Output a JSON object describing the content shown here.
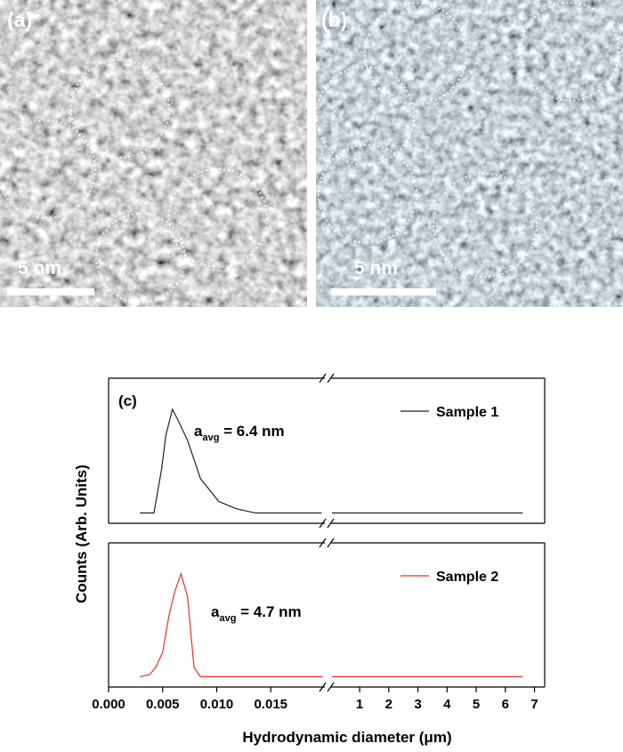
{
  "images": [
    {
      "label": "(a)",
      "scale_bar": "5 nm"
    },
    {
      "label": "(b)",
      "scale_bar": "5 nm"
    }
  ],
  "chart_data": {
    "type": "line",
    "label": "(c)",
    "xlabel": "Hydrodynamic diameter (μm)",
    "ylabel": "Counts (Arb. Units)",
    "xlim": [
      0,
      0.02
    ],
    "xticks": [
      {
        "value": 0,
        "label": "0.000"
      },
      0.005,
      {
        "value": 0.01,
        "label": "0.010"
      },
      0.015
    ],
    "x2lim": [
      0.02,
      7.35
    ],
    "x2ticks": [
      1,
      2,
      3,
      4,
      5,
      6,
      7
    ],
    "ylim": [
      -0.1,
      1.3
    ],
    "legend": "upper right",
    "series": [
      {
        "name": "Sample 1",
        "color": "#222222",
        "x": [
          0.0029,
          0.0042,
          0.0049,
          0.0053,
          0.0059,
          0.0064,
          0.0073,
          0.0085,
          0.0102,
          0.0118,
          0.0136,
          0.0197,
          0.05,
          6.6
        ],
        "values": [
          0,
          0,
          0.42,
          0.75,
          1.0,
          0.9,
          0.7,
          0.33,
          0.11,
          0.04,
          0,
          0,
          0,
          0
        ],
        "annotation": {
          "symbol": "a",
          "subscript": "avg",
          "text": " = 6.4 nm"
        }
      },
      {
        "name": "Sample 2",
        "color": "#e8302a",
        "x": [
          0.0029,
          0.0038,
          0.0044,
          0.005,
          0.0056,
          0.0061,
          0.0067,
          0.0073,
          0.0079,
          0.0085,
          0.0198,
          0.05,
          6.6
        ],
        "values": [
          0,
          0.02,
          0.1,
          0.24,
          0.6,
          0.82,
          1.0,
          0.78,
          0.09,
          0,
          0,
          0,
          0
        ],
        "annotation": {
          "symbol": "a",
          "subscript": "avg",
          "text": " = 4.7 nm"
        }
      }
    ]
  }
}
